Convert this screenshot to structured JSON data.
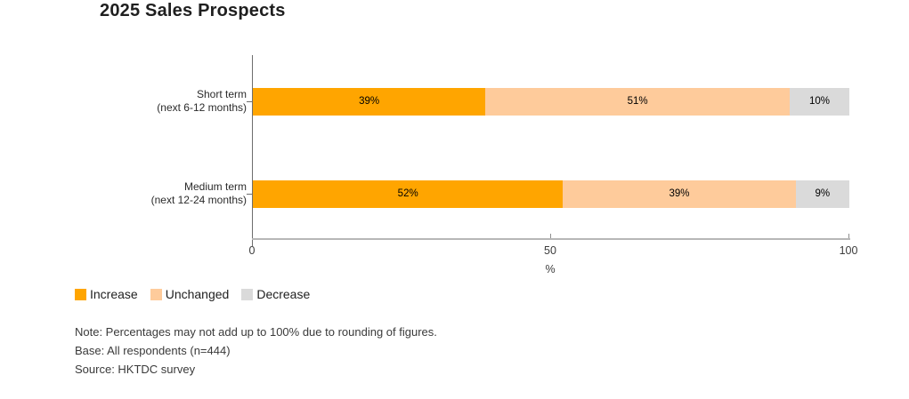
{
  "title": "2025 Sales Prospects",
  "chart_data": {
    "type": "bar",
    "orientation": "horizontal",
    "stacked": true,
    "title": "2025 Sales Prospects",
    "categories": [
      "Short term\n(next 6-12 months)",
      "Medium term\n(next 12-24 months)"
    ],
    "series": [
      {
        "name": "Increase",
        "color": "#FFA500",
        "values": [
          39,
          52
        ]
      },
      {
        "name": "Unchanged",
        "color": "#FECB9B",
        "values": [
          51,
          39
        ]
      },
      {
        "name": "Decrease",
        "color": "#DADADA",
        "values": [
          10,
          9
        ]
      }
    ],
    "value_suffix": "%",
    "xlabel": "%",
    "xlim": [
      0,
      100
    ],
    "xticks": [
      0,
      50,
      100
    ],
    "grid": false,
    "legend_position": "bottom-left"
  },
  "axis_colors": {
    "y_axis_line": "#6e6e6e",
    "x_axis_line": "#b7b7b7"
  },
  "notes": [
    "Note: Percentages may not add up to 100% due to rounding of figures.",
    "Base: All respondents (n=444)",
    "Source: HKTDC survey"
  ]
}
